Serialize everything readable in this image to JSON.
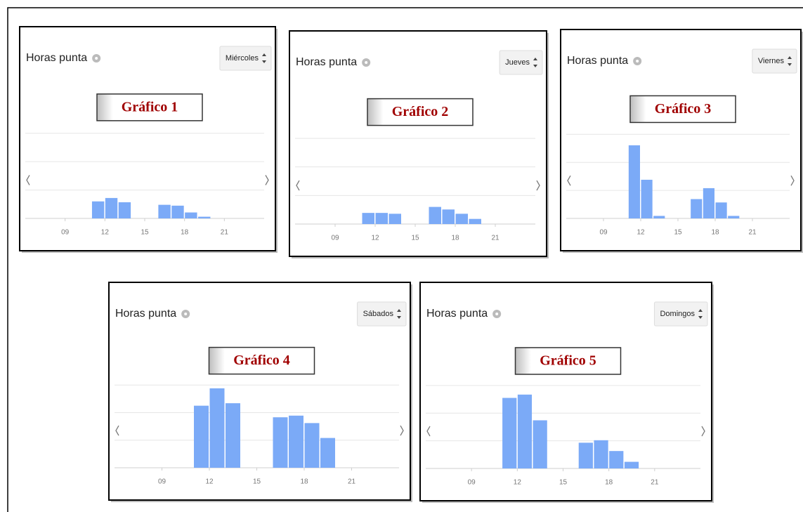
{
  "chart_data": [
    {
      "type": "bar",
      "title": "Horas punta",
      "selector": "Miércoles",
      "label": "Gráfico 1",
      "color": "#7baaf7",
      "ylim": [
        0,
        100
      ],
      "grid": true,
      "categories": [
        null,
        null,
        null,
        "09",
        null,
        null,
        "12",
        null,
        null,
        "15",
        null,
        null,
        "18",
        null,
        null,
        "21",
        null,
        null
      ],
      "values": [
        0,
        0,
        0,
        0,
        0,
        20,
        24,
        19,
        0,
        0,
        16,
        15,
        7,
        2,
        0,
        0,
        0,
        0
      ]
    },
    {
      "type": "bar",
      "title": "Horas punta",
      "selector": "Jueves",
      "label": "Gráfico 2",
      "color": "#7baaf7",
      "ylim": [
        0,
        100
      ],
      "grid": true,
      "categories": [
        null,
        null,
        null,
        "09",
        null,
        null,
        "12",
        null,
        null,
        "15",
        null,
        null,
        "18",
        null,
        null,
        "21",
        null,
        null
      ],
      "values": [
        0,
        0,
        0,
        0,
        0,
        13,
        13,
        12,
        0,
        0,
        20,
        17,
        12,
        6,
        0,
        0,
        0,
        0
      ]
    },
    {
      "type": "bar",
      "title": "Horas punta",
      "selector": "Viernes",
      "label": "Gráfico 3",
      "color": "#7baaf7",
      "ylim": [
        0,
        100
      ],
      "grid": true,
      "categories": [
        null,
        null,
        null,
        "09",
        null,
        null,
        "12",
        null,
        null,
        "15",
        null,
        null,
        "18",
        null,
        null,
        "21",
        null,
        null
      ],
      "values": [
        0,
        0,
        0,
        0,
        0,
        87,
        46,
        3,
        0,
        0,
        23,
        36,
        19,
        3,
        0,
        0,
        0,
        0
      ]
    },
    {
      "type": "bar",
      "title": "Horas punta",
      "selector": "Sábados",
      "label": "Gráfico 4",
      "color": "#7baaf7",
      "ylim": [
        0,
        100
      ],
      "grid": true,
      "categories": [
        null,
        null,
        null,
        "09",
        null,
        null,
        "12",
        null,
        null,
        "15",
        null,
        null,
        "18",
        null,
        null,
        "21",
        null,
        null
      ],
      "values": [
        0,
        0,
        0,
        0,
        0,
        75,
        96,
        78,
        0,
        0,
        61,
        63,
        54,
        36,
        0,
        0,
        0,
        0
      ]
    },
    {
      "type": "bar",
      "title": "Horas punta",
      "selector": "Domingos",
      "label": "Gráfico 5",
      "color": "#7baaf7",
      "ylim": [
        0,
        100
      ],
      "grid": true,
      "categories": [
        null,
        null,
        null,
        "09",
        null,
        null,
        "12",
        null,
        null,
        "15",
        null,
        null,
        "18",
        null,
        null,
        "21",
        null,
        null
      ],
      "values": [
        0,
        0,
        0,
        0,
        0,
        85,
        89,
        58,
        0,
        0,
        31,
        34,
        21,
        8,
        0,
        0,
        0,
        0
      ]
    }
  ]
}
